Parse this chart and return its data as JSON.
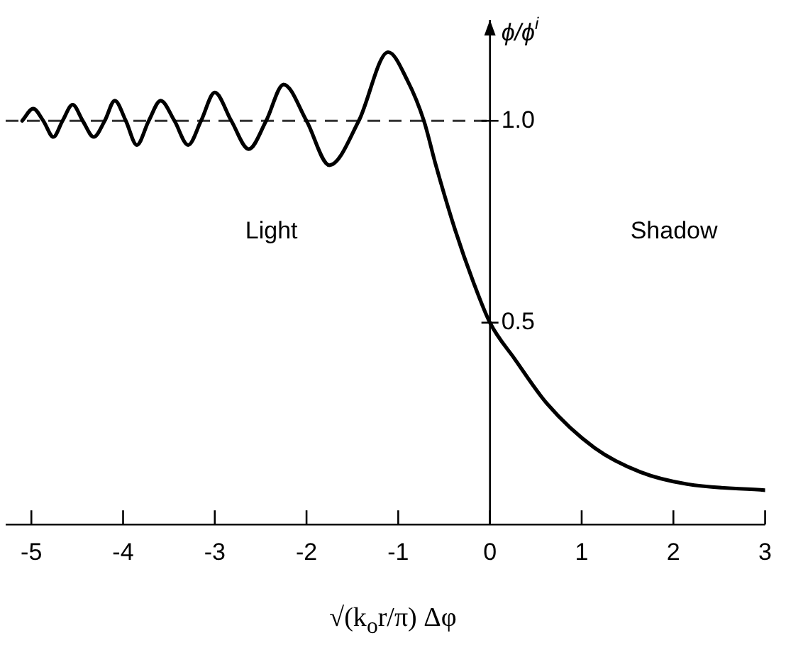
{
  "chart_data": {
    "type": "line",
    "xlabel": "√(k$_{o}$r/π) Δφ",
    "ylabel": "ϕ/ϕ$^{i}$",
    "x": [
      -5.1,
      -4.98,
      -4.87,
      -4.76,
      -4.66,
      -4.55,
      -4.44,
      -4.32,
      -4.2,
      -4.09,
      -3.97,
      -3.85,
      -3.72,
      -3.59,
      -3.44,
      -3.29,
      -3.15,
      -3.0,
      -2.82,
      -2.63,
      -2.44,
      -2.25,
      -2.0,
      -1.75,
      -1.43,
      -1.11,
      -0.9,
      -0.72,
      -0.59,
      -0.38,
      -0.18,
      0,
      0.27,
      0.62,
      1.14,
      1.64,
      2.15,
      3.0
    ],
    "series": [
      {
        "color": "#000000",
        "values": [
          1.0,
          1.03,
          1.0,
          0.96,
          1.0,
          1.04,
          1.0,
          0.96,
          1.0,
          1.05,
          1.0,
          0.94,
          1.0,
          1.05,
          1.0,
          0.94,
          1.0,
          1.07,
          1.0,
          0.93,
          1.0,
          1.09,
          1.0,
          0.89,
          1.0,
          1.17,
          1.1,
          1.0,
          0.89,
          0.73,
          0.6,
          0.5,
          0.41,
          0.3,
          0.19,
          0.13,
          0.1,
          0.085
        ]
      }
    ],
    "xlim": [
      -5.28,
      3.0
    ],
    "ylim": [
      0,
      1.25
    ],
    "xticks": [
      -5,
      -4,
      -3,
      -2,
      -1,
      0,
      1,
      2,
      3
    ],
    "yticks": [
      0.5,
      {
        "value": 1.0,
        "label": "1.0"
      }
    ],
    "ref_lines": [
      {
        "axis": "y",
        "value": 1.0,
        "line_style": "dashed",
        "color": "#333333"
      }
    ],
    "annotations": [
      "Light",
      "Shadow"
    ],
    "marker": "none",
    "line_style": "solid",
    "grid": false,
    "legend": false
  }
}
